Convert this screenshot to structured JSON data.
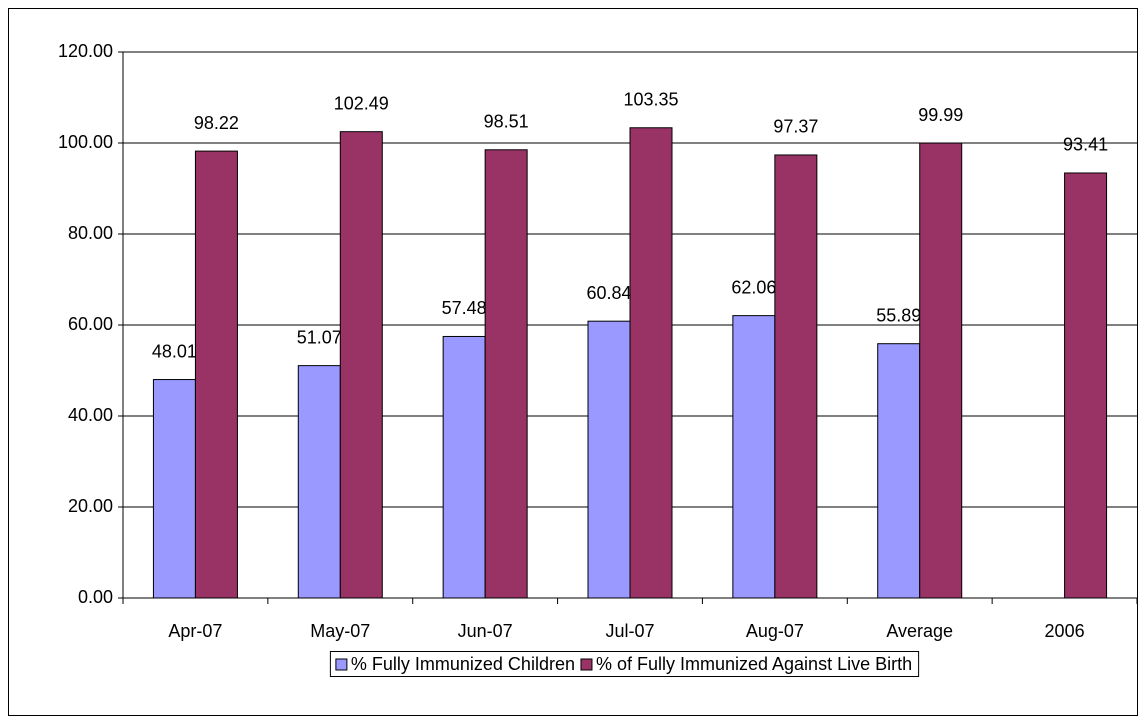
{
  "chart_data": {
    "type": "bar",
    "categories": [
      "Apr-07",
      "May-07",
      "Jun-07",
      "Jul-07",
      "Aug-07",
      "Average",
      "2006"
    ],
    "series": [
      {
        "name": "% Fully Immunized Children",
        "color": "#9999ff",
        "values": [
          48.01,
          51.07,
          57.48,
          60.84,
          62.06,
          55.89,
          null
        ]
      },
      {
        "name": "% of Fully Immunized Against Live Birth",
        "color": "#993366",
        "values": [
          98.22,
          102.49,
          98.51,
          103.35,
          97.37,
          99.99,
          93.41
        ]
      }
    ],
    "ylim": [
      0,
      120
    ],
    "yticks": [
      {
        "value": 0,
        "label": "0.00"
      },
      {
        "value": 20,
        "label": "20.00"
      },
      {
        "value": 40,
        "label": "40.00"
      },
      {
        "value": 60,
        "label": "60.00"
      },
      {
        "value": 80,
        "label": "80.00"
      },
      {
        "value": 100,
        "label": "100.00"
      },
      {
        "value": 120,
        "label": "120.00"
      }
    ],
    "grid": true,
    "legend": "bottom"
  }
}
